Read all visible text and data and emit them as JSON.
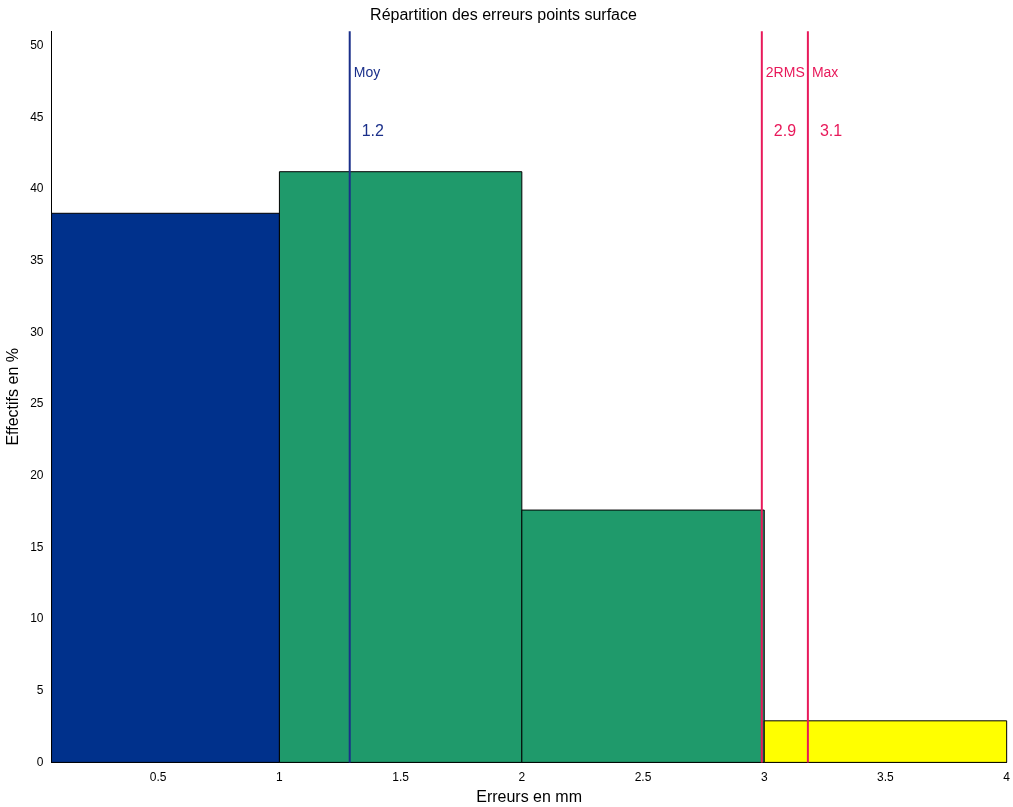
{
  "chart_data": {
    "type": "histogram",
    "title": "Répartition des erreurs points surface",
    "xlabel": "Erreurs en mm",
    "ylabel": "Effectifs en %",
    "bins": [
      0.06,
      1,
      2,
      3,
      4
    ],
    "values": [
      38.3,
      41.2,
      17.6,
      2.9
    ],
    "colors": [
      "#00318c",
      "#1f9a6b",
      "#1f9a6b",
      "#ffff00"
    ],
    "xlim": [
      0.06,
      4
    ],
    "xticks": [
      0.5,
      1,
      1.5,
      2,
      2.5,
      3,
      3.5,
      4
    ],
    "ylim": [
      0,
      51
    ],
    "yticks": [
      0,
      5,
      10,
      15,
      20,
      25,
      30,
      35,
      40,
      45,
      50
    ],
    "grid": false,
    "legend": false,
    "ref_lines": [
      {
        "axis": "x",
        "value": 1.29,
        "label": "Moy",
        "color": "#1a2f8a"
      },
      {
        "axis": "x",
        "value": 2.99,
        "label": "2RMS",
        "color": "#e8195a"
      },
      {
        "axis": "x",
        "value": 3.18,
        "label": "Max",
        "color": "#e8195a"
      }
    ],
    "annotations": [
      {
        "text": "1.2",
        "x": 1.29,
        "y": 44
      },
      {
        "text": "2.9",
        "x": 2.99,
        "y": 44
      },
      {
        "text": "3.1",
        "x": 3.18,
        "y": 44
      }
    ]
  }
}
